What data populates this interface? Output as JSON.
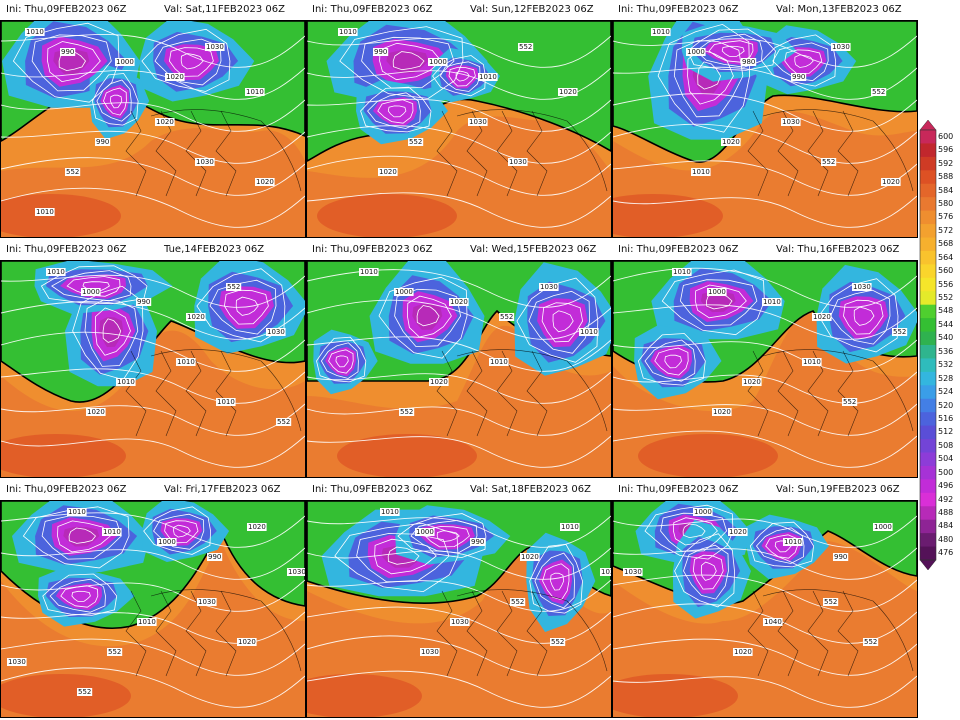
{
  "panels": [
    {
      "ini": "Ini: Thu,09FEB2023 06Z",
      "valid": "Val: Sat,11FEB2023 06Z",
      "labels": [
        "1010",
        "990",
        "1000",
        "1020",
        "1030",
        "1010",
        "1020",
        "990",
        "552",
        "1030",
        "1020",
        "1010"
      ]
    },
    {
      "ini": "Ini: Thu,09FEB2023 06Z",
      "valid": "Val: Sun,12FEB2023 06Z",
      "labels": [
        "1010",
        "990",
        "1000",
        "1010",
        "552",
        "1020",
        "1030",
        "552",
        "1020",
        "1030"
      ]
    },
    {
      "ini": "Ini: Thu,09FEB2023 06Z",
      "valid": "Val: Mon,13FEB2023 06Z",
      "labels": [
        "1010",
        "1000",
        "980",
        "990",
        "1030",
        "552",
        "1030",
        "1020",
        "1010",
        "552",
        "1020"
      ]
    },
    {
      "ini": "Ini: Thu,09FEB2023 06Z",
      "valid": "Tue,14FEB2023 06Z",
      "labels": [
        "1010",
        "1000",
        "990",
        "1020",
        "552",
        "1030",
        "1010",
        "1010",
        "1020",
        "1010",
        "552"
      ]
    },
    {
      "ini": "Ini: Thu,09FEB2023 06Z",
      "valid": "Val: Wed,15FEB2023 06Z",
      "labels": [
        "1010",
        "1000",
        "1020",
        "552",
        "1030",
        "1010",
        "1010",
        "1020",
        "552"
      ]
    },
    {
      "ini": "Ini: Thu,09FEB2023 06Z",
      "valid": "Val: Thu,16FEB2023 06Z",
      "labels": [
        "1010",
        "1000",
        "1010",
        "1020",
        "1030",
        "552",
        "1010",
        "1020",
        "1020",
        "552"
      ]
    },
    {
      "ini": "Ini: Thu,09FEB2023 06Z",
      "valid": "Val: Fri,17FEB2023 06Z",
      "labels": [
        "1010",
        "1010",
        "1000",
        "990",
        "1020",
        "1030",
        "1030",
        "1010",
        "552",
        "1020",
        "1030",
        "552"
      ]
    },
    {
      "ini": "Ini: Thu,09FEB2023 06Z",
      "valid": "Val: Sat,18FEB2023 06Z",
      "labels": [
        "1010",
        "1000",
        "990",
        "1020",
        "1010",
        "1030",
        "552",
        "1030",
        "1030",
        "552"
      ]
    },
    {
      "ini": "Ini: Thu,09FEB2023 06Z",
      "valid": "Val: Sun,19FEB2023 06Z",
      "labels": [
        "1000",
        "1020",
        "1010",
        "990",
        "1000",
        "1030",
        "552",
        "1040",
        "1020",
        "552"
      ]
    }
  ],
  "colorbar": {
    "levels": [
      "600",
      "596",
      "592",
      "588",
      "584",
      "580",
      "576",
      "572",
      "568",
      "564",
      "560",
      "556",
      "552",
      "548",
      "544",
      "540",
      "536",
      "532",
      "528",
      "524",
      "520",
      "516",
      "512",
      "508",
      "504",
      "500",
      "496",
      "492",
      "488",
      "484",
      "480",
      "476"
    ],
    "colors": [
      "#c8285a",
      "#c1272d",
      "#cf3b25",
      "#dd5124",
      "#e4662a",
      "#e97930",
      "#ef8e2f",
      "#f3a12f",
      "#f6b02e",
      "#f9c32d",
      "#fad52c",
      "#f5e52a",
      "#e4ea2a",
      "#4fcf2f",
      "#34bf33",
      "#2fb24f",
      "#2fb58e",
      "#2fbcbc",
      "#33b6df",
      "#3a9ee8",
      "#437fe5",
      "#4c63dd",
      "#5a4ed7",
      "#7344d7",
      "#8d3cd8",
      "#a632d6",
      "#c22cd8",
      "#d92fd7",
      "#b72ab8",
      "#8e2495",
      "#6a1c70",
      "#541258"
    ]
  }
}
